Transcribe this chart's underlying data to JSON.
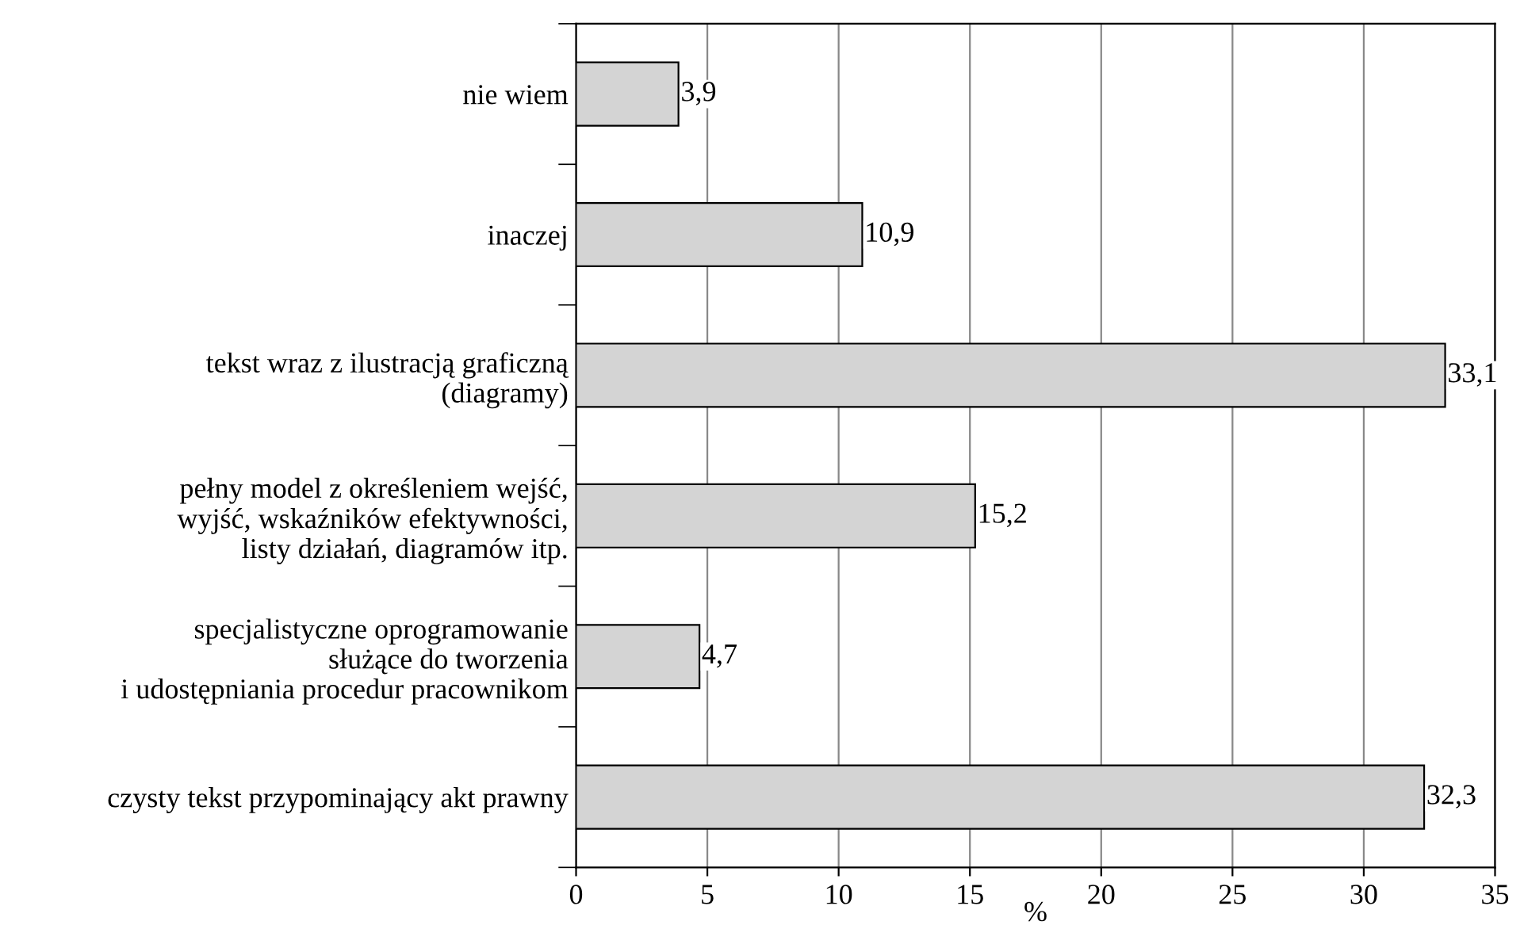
{
  "chart_data": {
    "type": "bar",
    "orientation": "horizontal",
    "xlabel": "%",
    "categories": [
      "nie wiem",
      "inaczej",
      "tekst wraz z ilustracją graficzną\n(diagramy)",
      "pełny model z określeniem wejść,\nwyjść, wskaźników efektywności,\nlisty działań, diagramów itp.",
      "specjalistyczne oprogramowanie\nsłużące do tworzenia\ni udostępniania procedur pracownikom",
      "czysty tekst przypominający akt prawny"
    ],
    "values": [
      3.9,
      10.9,
      33.1,
      15.2,
      4.7,
      32.3
    ],
    "value_labels": [
      "3,9",
      "10,9",
      "33,1",
      "15,2",
      "4,7",
      "32,3"
    ],
    "color": "#d4d4d4",
    "xlim": [
      0,
      35
    ],
    "xticks": [
      0,
      5,
      10,
      15,
      20,
      25,
      30,
      35
    ],
    "grid": "x"
  }
}
